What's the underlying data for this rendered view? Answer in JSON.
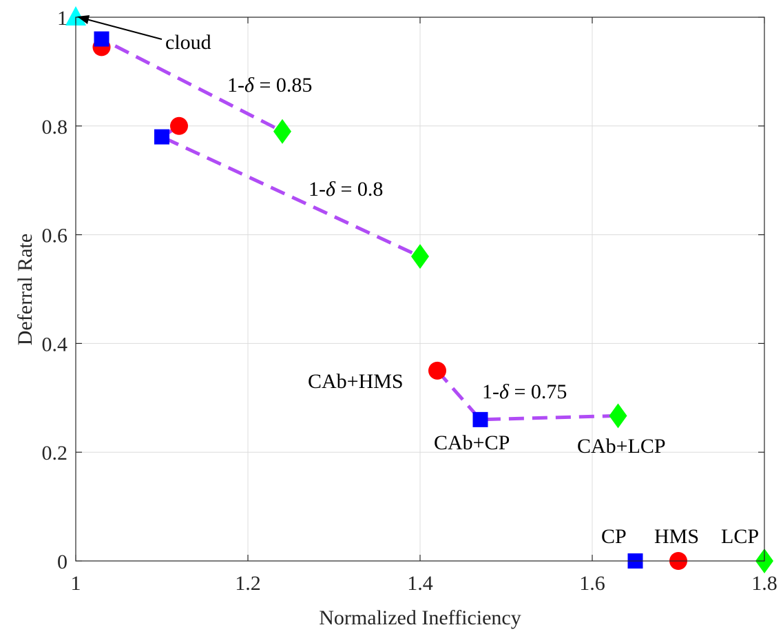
{
  "chart_data": {
    "type": "scatter",
    "title": "",
    "xlabel": "Normalized Inefficiency",
    "ylabel": "Deferral Rate",
    "xlim": [
      1,
      1.8
    ],
    "ylim": [
      0,
      1
    ],
    "grid": true,
    "xticks": [
      1,
      1.2,
      1.4,
      1.6,
      1.8
    ],
    "xtick_labels": [
      "1",
      "1.2",
      "1.4",
      "1.6",
      "1.8"
    ],
    "yticks": [
      0,
      0.2,
      0.4,
      0.6,
      0.8,
      1
    ],
    "ytick_labels": [
      "0",
      "0.2",
      "0.4",
      "0.6",
      "0.8",
      "1"
    ],
    "colors": {
      "hms": "#ff0000",
      "cp": "#0000ff",
      "lcp": "#00ff00",
      "cloud": "#00ffff",
      "frontier": "#b04cf5",
      "axis": "#262626",
      "grid": "#dcdcdc"
    },
    "frontiers": [
      {
        "name": "1-δ = 0.85",
        "x": [
          1.03,
          1.03,
          1.24
        ],
        "y": [
          0.945,
          0.96,
          0.79
        ]
      },
      {
        "name": "1-δ = 0.8",
        "x": [
          1.12,
          1.1,
          1.4
        ],
        "y": [
          0.8,
          0.78,
          0.56
        ]
      },
      {
        "name": "1-δ = 0.75",
        "x": [
          1.42,
          1.47,
          1.63
        ],
        "y": [
          0.35,
          0.26,
          0.267
        ]
      }
    ],
    "series": [
      {
        "name": "HMS",
        "marker": "circle",
        "x": [
          1.03,
          1.12,
          1.42,
          1.7
        ],
        "y": [
          0.945,
          0.8,
          0.35,
          0.0
        ]
      },
      {
        "name": "CP",
        "marker": "square",
        "x": [
          1.03,
          1.1,
          1.47,
          1.65
        ],
        "y": [
          0.96,
          0.78,
          0.26,
          0.0
        ]
      },
      {
        "name": "LCP",
        "marker": "diamond",
        "x": [
          1.24,
          1.4,
          1.63,
          1.8
        ],
        "y": [
          0.79,
          0.56,
          0.267,
          0.0
        ]
      },
      {
        "name": "cloud",
        "marker": "triangle",
        "x": [
          1.0
        ],
        "y": [
          1.0
        ]
      }
    ],
    "annotations": {
      "cloud": "cloud",
      "delta_085_prefix": "1-",
      "delta_085_symbol": "δ",
      "delta_085_value": " = 0.85",
      "delta_08_prefix": "1-",
      "delta_08_symbol": "δ",
      "delta_08_value": " = 0.8",
      "delta_075_prefix": "1-",
      "delta_075_symbol": "δ",
      "delta_075_value": " = 0.75",
      "cab_hms": "CAb+HMS",
      "cab_cp": "CAb+CP",
      "cab_lcp": "CAb+LCP",
      "cp": "CP",
      "hms": "HMS",
      "lcp": "LCP"
    }
  }
}
